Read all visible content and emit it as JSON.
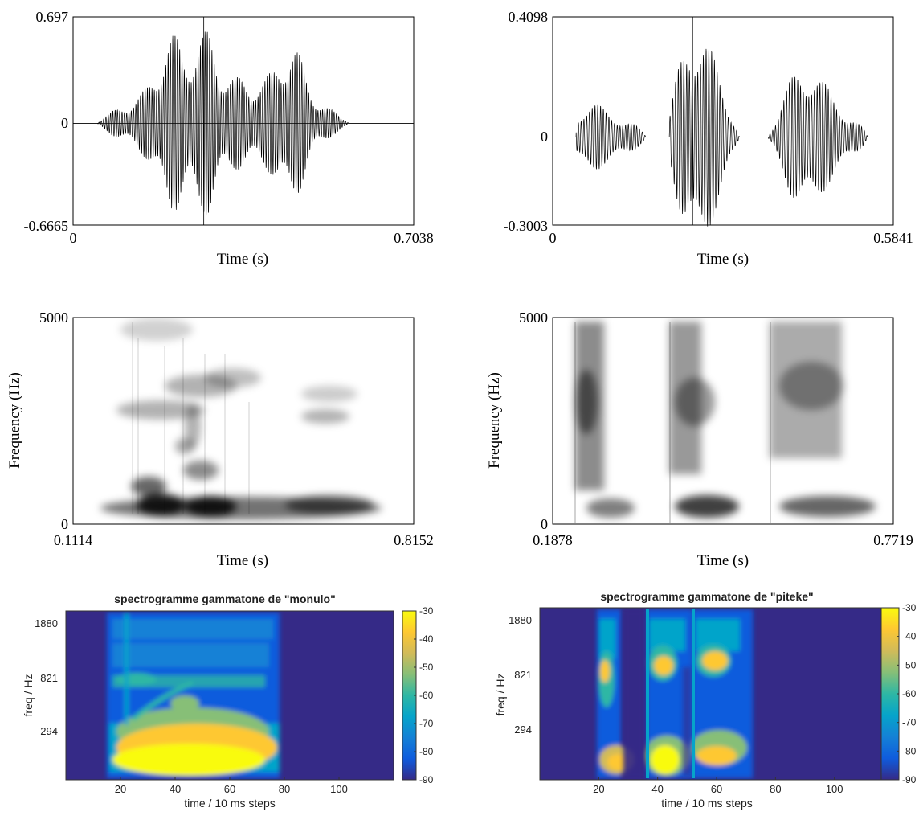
{
  "waveforms": [
    {
      "word": "monulo",
      "y_top": "0.697",
      "y_zero": "0",
      "y_bottom": "-0.6665",
      "x_start": "0",
      "x_end": "0.7038",
      "xlabel": "Time (s)",
      "ylim": [
        -0.6665,
        0.697
      ],
      "xlim": [
        0,
        0.7038
      ],
      "segments": [
        {
          "start": 0.05,
          "end": 0.57,
          "amplitude": 0.55,
          "peaks": [
            0.2,
            0.27,
            0.45
          ]
        }
      ]
    },
    {
      "word": "piteke",
      "y_top": "0.4098",
      "y_zero": "0",
      "y_bottom": "-0.3003",
      "x_start": "0",
      "x_end": "0.5841",
      "xlabel": "Time (s)",
      "ylim": [
        -0.3003,
        0.4098
      ],
      "xlim": [
        0,
        0.5841
      ],
      "segments": [
        {
          "start": 0.04,
          "end": 0.16,
          "amplitude": 0.14,
          "peaks": [
            0.05
          ]
        },
        {
          "start": 0.2,
          "end": 0.32,
          "amplitude": 0.38,
          "peaks": [
            0.24
          ]
        },
        {
          "start": 0.37,
          "end": 0.54,
          "amplitude": 0.25,
          "peaks": [
            0.43
          ]
        }
      ]
    }
  ],
  "spectrograms": [
    {
      "y_top": "5000",
      "y_bottom": "0",
      "x_start": "0.1114",
      "x_end": "0.8152",
      "xlabel": "Time (s)",
      "ylabel": "Frequency (Hz)",
      "ylim": [
        0,
        5000
      ],
      "xlim": [
        0.1114,
        0.8152
      ]
    },
    {
      "y_top": "5000",
      "y_bottom": "0",
      "x_start": "0.1878",
      "x_end": "0.7719",
      "xlabel": "Time (s)",
      "ylabel": "Frequency (Hz)",
      "ylim": [
        0,
        5000
      ],
      "xlim": [
        0.1878,
        0.7719
      ]
    }
  ],
  "chart_data": [
    {
      "type": "heatmap",
      "title": "spectrogramme gammatone de \"monulo\"",
      "xlabel": "time / 10 ms steps",
      "ylabel": "freq / Hz",
      "x_ticks": [
        "20",
        "40",
        "60",
        "80",
        "100"
      ],
      "y_ticks": [
        "1880",
        "821",
        "294"
      ],
      "colorbar_ticks": [
        "-30",
        "-40",
        "-50",
        "-60",
        "-70",
        "-80",
        "-90"
      ],
      "colorbar_range": [
        -90,
        -30
      ],
      "xlim": [
        0,
        120
      ],
      "active_frames": [
        15,
        78
      ],
      "colors": [
        "#352a87",
        "#0f5cdd",
        "#1481d6",
        "#06a4ca",
        "#2eb7a4",
        "#87bf77",
        "#d1bb59",
        "#fec832",
        "#f9fb0e"
      ]
    },
    {
      "type": "heatmap",
      "title": "spectrogramme gammatone de \"piteke\"",
      "xlabel": "time / 10 ms steps",
      "ylabel": "freq / Hz",
      "x_ticks": [
        "20",
        "40",
        "60",
        "80",
        "100"
      ],
      "y_ticks": [
        "1880",
        "821",
        "294"
      ],
      "colorbar_ticks": [
        "-30",
        "-40",
        "-50",
        "-60",
        "-70",
        "-80",
        "-90"
      ],
      "colorbar_range": [
        -90,
        -30
      ],
      "xlim": [
        0,
        120
      ],
      "active_frames": [
        [
          21,
          37
        ],
        [
          38,
          55
        ],
        [
          56,
          76
        ]
      ],
      "colors": [
        "#352a87",
        "#0f5cdd",
        "#1481d6",
        "#06a4ca",
        "#2eb7a4",
        "#87bf77",
        "#d1bb59",
        "#fec832",
        "#f9fb0e"
      ]
    }
  ]
}
